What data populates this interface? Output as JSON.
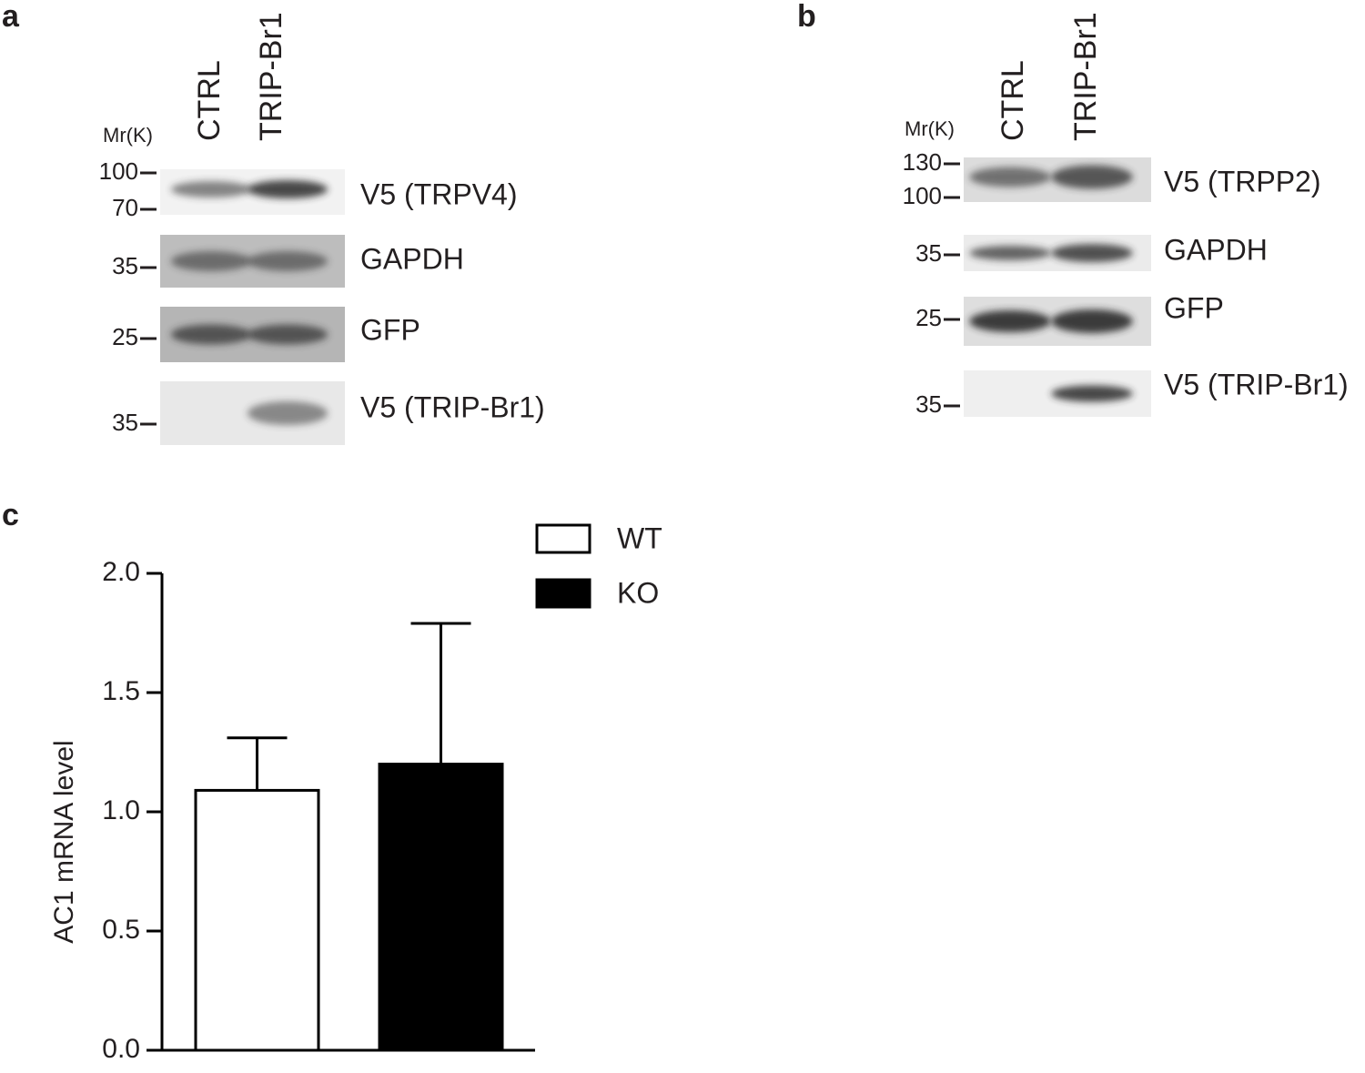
{
  "panels": {
    "a": {
      "label": "a",
      "mr_label": "Mr(K)",
      "lanes": [
        "CTRL",
        "TRIP-Br1"
      ],
      "blots": [
        {
          "label": "V5 (TRPV4)",
          "markers": [
            "100",
            "70"
          ]
        },
        {
          "label": "GAPDH",
          "markers": [
            "35"
          ]
        },
        {
          "label": "GFP",
          "markers": [
            "25"
          ]
        },
        {
          "label": "V5 (TRIP-Br1)",
          "markers": [
            "35"
          ]
        }
      ]
    },
    "b": {
      "label": "b",
      "mr_label": "Mr(K)",
      "lanes": [
        "CTRL",
        "TRIP-Br1"
      ],
      "blots": [
        {
          "label": "V5 (TRPP2)",
          "markers": [
            "130",
            "100"
          ]
        },
        {
          "label": "GAPDH",
          "markers": [
            "35"
          ]
        },
        {
          "label": "GFP",
          "markers": [
            "25"
          ]
        },
        {
          "label": "V5 (TRIP-Br1)",
          "markers": [
            "35"
          ]
        }
      ]
    }
  },
  "chart_data": {
    "type": "bar",
    "panel_label": "c",
    "y_label": "AC1 mRNA level",
    "categories": [
      null
    ],
    "series": [
      {
        "name": "WT",
        "color": "#ffffff",
        "values": [
          1.09
        ],
        "errors": [
          0.22
        ]
      },
      {
        "name": "KO",
        "color": "#000000",
        "values": [
          1.2
        ],
        "errors": [
          0.59
        ]
      }
    ],
    "ylim": [
      0,
      2.0
    ],
    "yticks": [
      {
        "value": 0,
        "label": "0.0"
      },
      0.5,
      {
        "value": 1,
        "label": "1.0"
      },
      1.5,
      {
        "value": 2,
        "label": "2.0"
      }
    ]
  }
}
